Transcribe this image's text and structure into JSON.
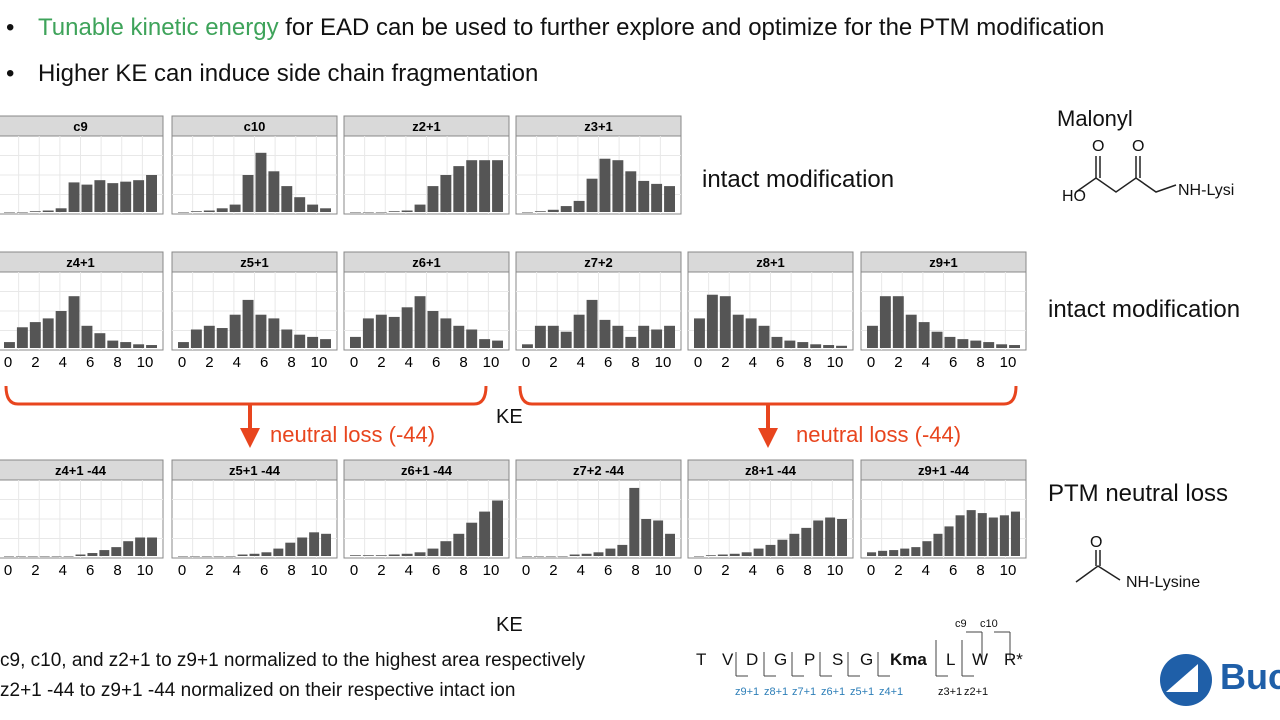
{
  "bullets": {
    "b1_highlight": "Tunable kinetic energy",
    "b1_rest": " for EAD can be used to further explore and optimize for the PTM modification",
    "b2": "Higher KE can induce side chain fragmentation",
    "marker": "•"
  },
  "labels": {
    "row1": "intact modification",
    "row2": "intact modification",
    "row3": "PTM neutral loss",
    "neutral_loss_left": "neutral loss (-44)",
    "neutral_loss_right": "neutral loss (-44)",
    "ke_axis_1": "KE",
    "ke_axis_2": "KE"
  },
  "structures": {
    "malonyl_title": "Malonyl",
    "o_left": "O",
    "o_right": "O",
    "ho": "HO",
    "nh_lysine_1": "NH-Lysi",
    "o_acetyl": "O",
    "nh_lysine_2": "NH-Lysine"
  },
  "footnotes": {
    "line1": "c9, c10, and z2+1 to z9+1 normalized to the highest area respectively",
    "line2": "z2+1 -44 to z9+1 -44 normalized on their respective intact ion"
  },
  "sequence": {
    "residues": [
      "T",
      "V",
      "D",
      "G",
      "P",
      "S",
      "G",
      "Kma",
      "L",
      "W",
      "R*"
    ],
    "z_frags": [
      "z9+1",
      "z8+1",
      "z7+1",
      "z6+1",
      "z5+1",
      "z4+1"
    ],
    "z_frags_right": [
      "z3+1",
      "z2+1"
    ],
    "c_frags": [
      "c9",
      "c10"
    ]
  },
  "logo_text": "Buc",
  "colors": {
    "bar": "#555555",
    "strip": "#d9d9d9",
    "accent": "#e8451e",
    "green": "#3ea35a",
    "frag_blue": "#2e7fb8"
  },
  "chart_data": {
    "type": "bar",
    "x_ticks": [
      "0",
      "2",
      "4",
      "6",
      "8",
      "10"
    ],
    "xlabel": "KE",
    "grid": true,
    "panels": [
      {
        "title": "c9",
        "values": [
          0,
          0,
          1,
          2,
          5,
          40,
          37,
          43,
          39,
          41,
          43,
          50
        ]
      },
      {
        "title": "c10",
        "values": [
          0,
          1,
          2,
          5,
          10,
          50,
          80,
          55,
          35,
          20,
          10,
          5
        ]
      },
      {
        "title": "z2+1",
        "values": [
          0,
          0,
          0,
          1,
          2,
          10,
          35,
          50,
          62,
          70,
          70,
          70
        ]
      },
      {
        "title": "z3+1",
        "values": [
          0,
          1,
          3,
          8,
          15,
          45,
          72,
          70,
          55,
          42,
          38,
          35
        ]
      },
      {
        "title": "z4+1",
        "values": [
          8,
          28,
          35,
          40,
          50,
          70,
          30,
          20,
          10,
          8,
          5,
          4
        ]
      },
      {
        "title": "z5+1",
        "values": [
          8,
          25,
          30,
          27,
          45,
          65,
          45,
          40,
          25,
          18,
          15,
          12
        ]
      },
      {
        "title": "z6+1",
        "values": [
          15,
          40,
          45,
          42,
          55,
          70,
          50,
          40,
          30,
          25,
          12,
          10
        ]
      },
      {
        "title": "z7+2",
        "values": [
          5,
          30,
          30,
          22,
          45,
          65,
          38,
          30,
          15,
          30,
          25,
          30
        ]
      },
      {
        "title": "z8+1",
        "values": [
          40,
          72,
          70,
          45,
          40,
          30,
          15,
          10,
          8,
          5,
          4,
          3
        ]
      },
      {
        "title": "z9+1",
        "values": [
          30,
          70,
          70,
          45,
          35,
          22,
          15,
          12,
          10,
          8,
          5,
          4
        ]
      },
      {
        "title": "z4+1 -44",
        "values": [
          0,
          0,
          0,
          0,
          0,
          0,
          2,
          4,
          8,
          12,
          20,
          25,
          25
        ]
      },
      {
        "title": "z5+1 -44",
        "values": [
          0,
          0,
          0,
          0,
          0,
          2,
          3,
          5,
          10,
          18,
          25,
          32,
          30
        ]
      },
      {
        "title": "z6+1 -44",
        "values": [
          1,
          1,
          1,
          2,
          3,
          5,
          10,
          20,
          30,
          45,
          60,
          75
        ]
      },
      {
        "title": "z7+2 -44",
        "values": [
          0,
          0,
          0,
          0,
          2,
          3,
          5,
          10,
          15,
          92,
          50,
          48,
          30
        ]
      },
      {
        "title": "z8+1 -44",
        "values": [
          0,
          1,
          2,
          3,
          5,
          10,
          15,
          22,
          30,
          38,
          48,
          52,
          50
        ]
      },
      {
        "title": "z9+1 -44",
        "values": [
          5,
          7,
          8,
          10,
          12,
          20,
          30,
          40,
          55,
          62,
          58,
          52,
          55,
          60
        ]
      }
    ]
  }
}
